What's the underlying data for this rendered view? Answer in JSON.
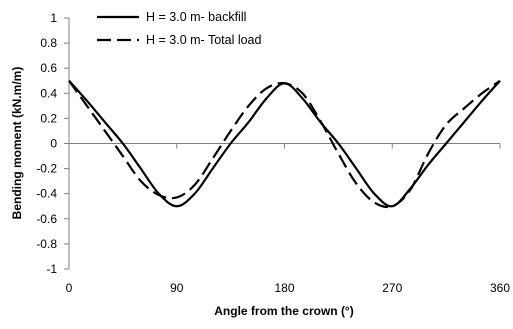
{
  "chart_data": {
    "type": "line",
    "title": "",
    "xlabel": "Angle from the crown (°)",
    "ylabel": "Bending moment (kN.m/m)",
    "xlim": [
      0,
      360
    ],
    "ylim": [
      -1,
      1
    ],
    "x_ticks": [
      "0",
      "90",
      "180",
      "270",
      "360"
    ],
    "y_ticks": [
      "-1",
      "-0.8",
      "-0.6",
      "-0.4",
      "-0.2",
      "0",
      "0.2",
      "0.4",
      "0.6",
      "0.8",
      "1"
    ],
    "grid": false,
    "legend_position": "top-left",
    "series": [
      {
        "name": "H = 3.0 m- backfill",
        "style": "solid",
        "color": "#000000",
        "x": [
          0,
          15,
          30,
          45,
          60,
          75,
          90,
          105,
          120,
          135,
          150,
          165,
          180,
          195,
          210,
          225,
          240,
          255,
          270,
          285,
          300,
          315,
          330,
          345,
          360
        ],
        "y": [
          0.5,
          0.34,
          0.17,
          0.0,
          -0.2,
          -0.4,
          -0.5,
          -0.4,
          -0.2,
          0.0,
          0.17,
          0.36,
          0.48,
          0.36,
          0.17,
          0.0,
          -0.2,
          -0.4,
          -0.5,
          -0.36,
          -0.17,
          0.0,
          0.17,
          0.34,
          0.5
        ]
      },
      {
        "name": "H = 3.0 m- Total load",
        "style": "dashed",
        "color": "#000000",
        "x": [
          0,
          15,
          30,
          45,
          60,
          75,
          90,
          105,
          120,
          135,
          150,
          165,
          180,
          195,
          210,
          225,
          240,
          255,
          270,
          285,
          300,
          315,
          330,
          345,
          360
        ],
        "y": [
          0.5,
          0.3,
          0.1,
          -0.1,
          -0.3,
          -0.41,
          -0.43,
          -0.33,
          -0.12,
          0.1,
          0.3,
          0.44,
          0.48,
          0.4,
          0.18,
          -0.08,
          -0.32,
          -0.47,
          -0.5,
          -0.37,
          -0.08,
          0.15,
          0.28,
          0.4,
          0.5
        ]
      }
    ]
  }
}
